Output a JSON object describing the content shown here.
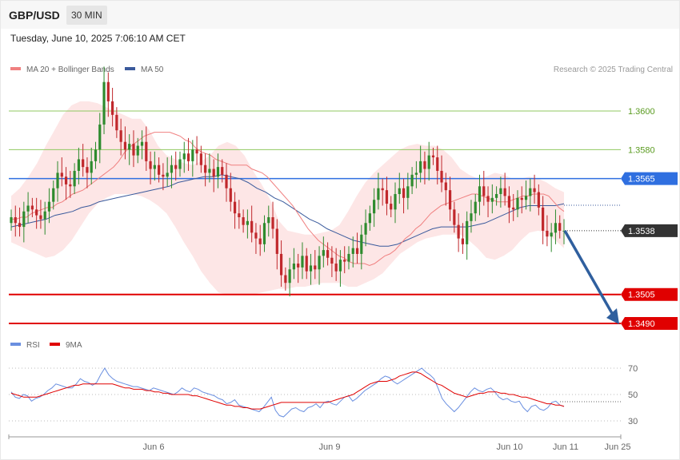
{
  "header": {
    "symbol": "GBP/USD",
    "timeframe": "30 MIN",
    "timestamp": "Tuesday, June 10, 2025 7:06:10 AM CET"
  },
  "copyright": "Research © 2025 Trading Central",
  "colors": {
    "up_candle": "#2e8b2e",
    "down_candle": "#c0282c",
    "ma20": "#f08080",
    "bollinger_fill": "#fde2e2",
    "ma50": "#3a5a9c",
    "resistance": "#90c860",
    "pivot": "#2f6fe0",
    "support": "#e00000",
    "current": "#333333",
    "forecast_arrow": "#2f5f9e",
    "rsi": "#6a8fe0",
    "rsi_ma": "#e00000"
  },
  "chart_data": [
    {
      "type": "candlestick",
      "legend": [
        {
          "label": "MA 20 + Bollinger Bands",
          "color": "#f08080"
        },
        {
          "label": "MA 50",
          "color": "#3a5a9c"
        }
      ],
      "ylim": [
        1.3475,
        1.364
      ],
      "x_tick_labels": [
        "Jun 6",
        "Jun 9",
        "Jun 10",
        "Jun 11",
        "Jun 25"
      ],
      "levels": [
        {
          "value": 1.36,
          "label": "1.3600",
          "kind": "resistance"
        },
        {
          "value": 1.358,
          "label": "1.3580",
          "kind": "resistance"
        },
        {
          "value": 1.3565,
          "label": "1.3565",
          "kind": "pivot"
        },
        {
          "value": 1.3538,
          "label": "1.3538",
          "kind": "current"
        },
        {
          "value": 1.3505,
          "label": "1.3505",
          "kind": "support"
        },
        {
          "value": 1.349,
          "label": "1.3490",
          "kind": "support"
        }
      ],
      "forecast": {
        "from": 1.3538,
        "to": 1.349,
        "direction": "down"
      },
      "close_series": [
        1.3545,
        1.3542,
        1.354,
        1.3548,
        1.3551,
        1.3549,
        1.3546,
        1.3544,
        1.3548,
        1.3553,
        1.356,
        1.3568,
        1.3566,
        1.3562,
        1.3561,
        1.3569,
        1.3575,
        1.3571,
        1.3568,
        1.3574,
        1.358,
        1.3593,
        1.3615,
        1.3605,
        1.3598,
        1.359,
        1.3584,
        1.358,
        1.3583,
        1.3577,
        1.3582,
        1.3584,
        1.3574,
        1.357,
        1.3572,
        1.3567,
        1.3566,
        1.3568,
        1.3572,
        1.357,
        1.3575,
        1.3578,
        1.3574,
        1.358,
        1.3578,
        1.3572,
        1.3568,
        1.357,
        1.3566,
        1.3571,
        1.3567,
        1.356,
        1.3553,
        1.3547,
        1.3545,
        1.3541,
        1.3543,
        1.3537,
        1.3534,
        1.3531,
        1.3542,
        1.3545,
        1.3539,
        1.3526,
        1.3515,
        1.3511,
        1.3518,
        1.3521,
        1.3519,
        1.3525,
        1.3517,
        1.352,
        1.3518,
        1.3525,
        1.3528,
        1.3524,
        1.3521,
        1.3517,
        1.3523,
        1.3522,
        1.3526,
        1.3529,
        1.3526,
        1.3536,
        1.3542,
        1.3547,
        1.3554,
        1.356,
        1.3559,
        1.3552,
        1.3549,
        1.3557,
        1.356,
        1.3555,
        1.3561,
        1.3567,
        1.3568,
        1.3574,
        1.357,
        1.3577,
        1.3576,
        1.3569,
        1.3563,
        1.3559,
        1.3549,
        1.3541,
        1.3534,
        1.3531,
        1.3543,
        1.3547,
        1.3553,
        1.3561,
        1.3556,
        1.3553,
        1.3555,
        1.3557,
        1.356,
        1.3556,
        1.355,
        1.3549,
        1.3555,
        1.3554,
        1.3556,
        1.356,
        1.3558,
        1.355,
        1.3538,
        1.3535,
        1.3537,
        1.3542,
        1.3538,
        1.3538
      ],
      "ma20_series": [
        1.3544,
        1.3544,
        1.3545,
        1.3545,
        1.3547,
        1.3548,
        1.3549,
        1.355,
        1.355,
        1.3552,
        1.3553,
        1.3555,
        1.3557,
        1.3558,
        1.3559,
        1.3561,
        1.3563,
        1.3565,
        1.3567,
        1.3569,
        1.3571,
        1.3574,
        1.3578,
        1.3581,
        1.3583,
        1.3585,
        1.3587,
        1.3588,
        1.3589,
        1.3589,
        1.3589,
        1.3589,
        1.3588,
        1.3587,
        1.3585,
        1.3584,
        1.3581,
        1.3579,
        1.3578,
        1.3577,
        1.3575,
        1.3574,
        1.3573,
        1.3572,
        1.3572,
        1.3572,
        1.3572,
        1.357,
        1.3569,
        1.3568,
        1.3566,
        1.3563,
        1.356,
        1.3557,
        1.3554,
        1.3551,
        1.3547,
        1.3543,
        1.3539,
        1.3536,
        1.3533,
        1.3531,
        1.3529,
        1.3527,
        1.3525,
        1.3524,
        1.3522,
        1.3521,
        1.3521,
        1.3521,
        1.352,
        1.3521,
        1.3523,
        1.3525,
        1.3526,
        1.3528,
        1.3531,
        1.3534,
        1.3536,
        1.3539,
        1.3541,
        1.3544,
        1.3547,
        1.3549,
        1.3551,
        1.3552,
        1.3553,
        1.3554,
        1.3555,
        1.3556,
        1.3557,
        1.3557,
        1.3556,
        1.3555,
        1.3554,
        1.3553,
        1.3553,
        1.3553,
        1.3554,
        1.3555,
        1.3556,
        1.3556,
        1.3557,
        1.3557,
        1.3557,
        1.3556,
        1.3553,
        1.355,
        1.3548
      ],
      "ma50_series": [
        1.354,
        1.3541,
        1.3542,
        1.3543,
        1.3544,
        1.3546,
        1.3547,
        1.3548,
        1.355,
        1.3551,
        1.3553,
        1.3554,
        1.3555,
        1.3556,
        1.3557,
        1.3558,
        1.3559,
        1.356,
        1.3561,
        1.3563,
        1.3564,
        1.3565,
        1.3566,
        1.3566,
        1.3567,
        1.3566,
        1.3565,
        1.3563,
        1.356,
        1.3558,
        1.3555,
        1.3553,
        1.355,
        1.3547,
        1.3544,
        1.3542,
        1.3539,
        1.3537,
        1.3535,
        1.3533,
        1.3532,
        1.3531,
        1.353,
        1.353,
        1.3531,
        1.3533,
        1.3535,
        1.3537,
        1.3539,
        1.354,
        1.354,
        1.354,
        1.354,
        1.3541,
        1.3542,
        1.3544,
        1.3546,
        1.3548,
        1.355,
        1.3551,
        1.3551,
        1.3551,
        1.3551,
        1.3552
      ],
      "bollinger_upper": [
        1.3556,
        1.356,
        1.3566,
        1.3573,
        1.3582,
        1.359,
        1.3598,
        1.3603,
        1.3605,
        1.3605,
        1.3604,
        1.3602,
        1.36,
        1.3598,
        1.3596,
        1.3596,
        1.359,
        1.3582,
        1.3577,
        1.3575,
        1.3573,
        1.3572,
        1.3574,
        1.3577,
        1.3582,
        1.3584,
        1.3582,
        1.3577,
        1.3569,
        1.3562,
        1.3554,
        1.3543,
        1.3538,
        1.3537,
        1.3536,
        1.3536,
        1.3537,
        1.3538,
        1.3541,
        1.3548,
        1.3556,
        1.3563,
        1.3568,
        1.3572,
        1.3576,
        1.358,
        1.3582,
        1.3583,
        1.3582,
        1.3582,
        1.358,
        1.3576,
        1.357,
        1.3567,
        1.3565,
        1.3566,
        1.3568,
        1.3567,
        1.3565,
        1.3565,
        1.3566,
        1.3565,
        1.3563,
        1.356,
        1.3558
      ],
      "bollinger_lower": [
        1.3532,
        1.353,
        1.3528,
        1.3526,
        1.3524,
        1.3525,
        1.3528,
        1.3533,
        1.354,
        1.3547,
        1.3552,
        1.3555,
        1.3557,
        1.3557,
        1.3557,
        1.3556,
        1.3554,
        1.3551,
        1.3547,
        1.354,
        1.3532,
        1.3525,
        1.3517,
        1.3511,
        1.3506,
        1.3505,
        1.3505,
        1.3505,
        1.3505,
        1.3506,
        1.3507,
        1.3508,
        1.3508,
        1.3509,
        1.3509,
        1.351,
        1.3511,
        1.3511,
        1.3511,
        1.3509,
        1.3509,
        1.3511,
        1.3513,
        1.3516,
        1.3521,
        1.3526,
        1.3529,
        1.3532,
        1.3534,
        1.3535,
        1.3536,
        1.3536,
        1.3536,
        1.3533,
        1.3529,
        1.3524,
        1.3523,
        1.3525,
        1.3528,
        1.3533,
        1.3537,
        1.3538,
        1.3537,
        1.3533,
        1.3529
      ]
    },
    {
      "type": "line",
      "legend": [
        {
          "label": "RSI",
          "color": "#6a8fe0"
        },
        {
          "label": "9MA",
          "color": "#e00000"
        }
      ],
      "ylim": [
        25,
        75
      ],
      "y_tick_labels": [
        "70",
        "50",
        "30"
      ],
      "gridlines": [
        70,
        50,
        30
      ],
      "rsi": [
        52,
        48,
        47,
        50,
        49,
        45,
        47,
        48,
        50,
        53,
        55,
        58,
        57,
        56,
        55,
        55,
        58,
        62,
        60,
        59,
        57,
        59,
        65,
        70,
        65,
        62,
        60,
        59,
        58,
        57,
        56,
        56,
        55,
        54,
        53,
        55,
        54,
        53,
        52,
        51,
        50,
        52,
        55,
        53,
        52,
        55,
        54,
        52,
        51,
        50,
        49,
        47,
        46,
        43,
        44,
        46,
        42,
        41,
        40,
        39,
        38,
        37,
        40,
        44,
        48,
        38,
        34,
        33,
        36,
        39,
        40,
        38,
        37,
        40,
        41,
        43,
        40,
        44,
        45,
        43,
        42,
        45,
        48,
        49,
        45,
        47,
        50,
        53,
        55,
        57,
        59,
        62,
        64,
        63,
        60,
        58,
        60,
        62,
        64,
        66,
        68,
        70,
        67,
        65,
        62,
        55,
        47,
        43,
        40,
        37,
        40,
        44,
        48,
        52,
        55,
        53,
        52,
        54,
        55,
        52,
        48,
        46,
        47,
        45,
        44,
        45,
        40,
        37,
        41,
        42,
        39,
        38,
        40,
        44,
        45,
        42,
        41
      ],
      "rsi_ma": [
        51,
        50,
        49,
        48,
        48,
        48,
        48,
        49,
        50,
        51,
        52,
        53,
        54,
        55,
        56,
        57,
        57,
        58,
        58,
        58,
        58,
        58,
        58,
        58,
        58,
        57,
        56,
        55,
        55,
        54,
        54,
        54,
        53,
        53,
        52,
        52,
        51,
        51,
        50,
        50,
        50,
        50,
        50,
        49,
        49,
        48,
        47,
        46,
        45,
        44,
        43,
        42,
        42,
        41,
        41,
        40,
        40,
        39,
        39,
        39,
        40,
        41,
        42,
        43,
        44,
        44,
        44,
        44,
        44,
        44,
        44,
        44,
        44,
        44,
        44,
        44,
        45,
        46,
        47,
        48,
        49,
        50,
        52,
        54,
        56,
        58,
        59,
        60,
        60,
        60,
        61,
        62,
        64,
        65,
        66,
        67,
        67,
        66,
        64,
        62,
        60,
        58,
        57,
        55,
        53,
        51,
        50,
        49,
        48,
        49,
        50,
        51,
        51,
        52,
        52,
        52,
        51,
        51,
        50,
        50,
        49,
        48,
        48,
        47,
        46,
        45,
        44,
        43,
        43,
        42,
        42,
        41
      ]
    }
  ]
}
